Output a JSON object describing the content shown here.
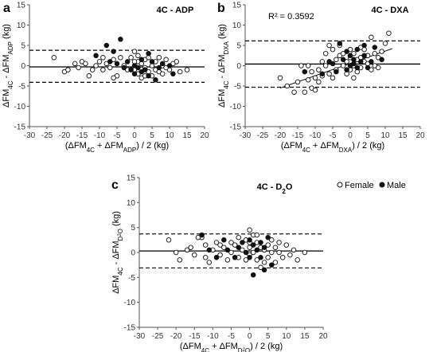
{
  "chart_data": [
    {
      "panel": "a",
      "type": "scatter",
      "title": "4C - ADP",
      "xlabel": "(ΔFM4C + ΔFMADP) / 2 (kg)",
      "ylabel": "ΔFM4C - ΔFMADP (kg)",
      "xlim": [
        -30,
        20
      ],
      "ylim": [
        -15,
        15
      ],
      "xticks": [
        "-30",
        "-25",
        "-20",
        "-15",
        "-10",
        "-5",
        "0",
        "5",
        "10",
        "15",
        "20"
      ],
      "yticks": [
        "-15",
        "-10",
        "-5",
        "0",
        "5",
        "10",
        "15"
      ],
      "mean": -0.3,
      "loa_upper": 3.8,
      "loa_lower": -4.1,
      "series": [
        {
          "sex": "female",
          "points": [
            [
              -23,
              2
            ],
            [
              -20,
              -1.5
            ],
            [
              -19,
              -1
            ],
            [
              -17,
              0.5
            ],
            [
              -16,
              -0.5
            ],
            [
              -15,
              1
            ],
            [
              -13,
              -2.5
            ],
            [
              -12,
              -1
            ],
            [
              -11,
              0
            ],
            [
              -10,
              1
            ],
            [
              -9,
              2
            ],
            [
              -9,
              -1
            ],
            [
              -8,
              0.5
            ],
            [
              -7,
              -0.5
            ],
            [
              -6,
              1.5
            ],
            [
              -5,
              -2.5
            ],
            [
              -4,
              2
            ],
            [
              -3,
              0
            ],
            [
              -2,
              -1
            ],
            [
              -1,
              2
            ],
            [
              0,
              3.5
            ],
            [
              0,
              -1
            ],
            [
              1,
              1
            ],
            [
              1,
              -2
            ],
            [
              2,
              0.5
            ],
            [
              2,
              -3
            ],
            [
              3,
              1.5
            ],
            [
              3,
              -0.5
            ],
            [
              4,
              2
            ],
            [
              4,
              -1.5
            ],
            [
              5,
              0
            ],
            [
              5,
              -2.5
            ],
            [
              6,
              1
            ],
            [
              6,
              -1
            ],
            [
              7,
              2
            ],
            [
              7,
              -1.5
            ],
            [
              8,
              0
            ],
            [
              8,
              -2
            ],
            [
              9,
              1.5
            ],
            [
              10,
              -1
            ],
            [
              11,
              0.5
            ],
            [
              12,
              1
            ],
            [
              13,
              -1.5
            ],
            [
              15,
              -1
            ],
            [
              -14,
              0.5
            ],
            [
              -6,
              -3
            ],
            [
              0,
              1
            ],
            [
              1,
              2.5
            ],
            [
              3,
              -2.5
            ],
            [
              9,
              -0.5
            ]
          ]
        },
        {
          "sex": "male",
          "points": [
            [
              -8,
              5
            ],
            [
              -4,
              6.5
            ],
            [
              -6,
              3.5
            ],
            [
              -11,
              2.5
            ],
            [
              -7,
              1
            ],
            [
              -3,
              -0.5
            ],
            [
              -1,
              -1
            ],
            [
              0,
              0
            ],
            [
              0,
              -2
            ],
            [
              1,
              -0.5
            ],
            [
              2,
              -1.5
            ],
            [
              2,
              1.5
            ],
            [
              3,
              -1
            ],
            [
              4,
              3
            ],
            [
              5,
              1
            ],
            [
              6,
              -3.5
            ],
            [
              7,
              -0.5
            ],
            [
              8,
              0.5
            ],
            [
              10,
              0
            ],
            [
              11,
              -2
            ],
            [
              -2,
              1
            ],
            [
              4,
              -2.5
            ],
            [
              -5,
              0.5
            ]
          ]
        }
      ]
    },
    {
      "panel": "b",
      "type": "scatter",
      "title": "4C - DXA",
      "annotation": "R² = 0.3592",
      "xlabel": "(ΔFM4C + ΔFMDXA) / 2 (kg)",
      "ylabel": "ΔFM4C - ΔFMDXA (kg)",
      "xlim": [
        -30,
        20
      ],
      "ylim": [
        -15,
        15
      ],
      "xticks": [
        "-30",
        "-25",
        "-20",
        "-15",
        "-10",
        "-5",
        "0",
        "5",
        "10",
        "15",
        "20"
      ],
      "yticks": [
        "-15",
        "-10",
        "-5",
        "0",
        "5",
        "10",
        "15"
      ],
      "mean": 0.4,
      "loa_upper": 6.1,
      "loa_lower": -5.3,
      "regression": [
        [
          -20,
          -5.5
        ],
        [
          12,
          4.2
        ]
      ],
      "series": [
        {
          "sex": "female",
          "points": [
            [
              -20,
              -3
            ],
            [
              -18,
              -5
            ],
            [
              -16,
              -6.5
            ],
            [
              -15,
              -4
            ],
            [
              -14,
              0
            ],
            [
              -13,
              -6.5
            ],
            [
              -12,
              -3.5
            ],
            [
              -11,
              -1.5
            ],
            [
              -11,
              -5.5
            ],
            [
              -10,
              -3
            ],
            [
              -10,
              -6
            ],
            [
              -9,
              -1
            ],
            [
              -9,
              -4
            ],
            [
              -8,
              1
            ],
            [
              -8,
              -2.5
            ],
            [
              -7,
              0
            ],
            [
              -7,
              3
            ],
            [
              -6,
              -2
            ],
            [
              -5,
              4
            ],
            [
              -5,
              -3
            ],
            [
              -4,
              1.5
            ],
            [
              -4,
              -1
            ],
            [
              -3,
              2.5
            ],
            [
              -3,
              5
            ],
            [
              -2,
              0
            ],
            [
              -2,
              3
            ],
            [
              -1,
              1
            ],
            [
              -1,
              -2
            ],
            [
              0,
              2
            ],
            [
              0,
              4
            ],
            [
              0,
              -1
            ],
            [
              1,
              0
            ],
            [
              1,
              3
            ],
            [
              2,
              -1.5
            ],
            [
              2,
              1.5
            ],
            [
              3,
              2
            ],
            [
              3,
              -0.5
            ],
            [
              4,
              4
            ],
            [
              4,
              1
            ],
            [
              5,
              0.5
            ],
            [
              5,
              2.5
            ],
            [
              6,
              7
            ],
            [
              6,
              -1
            ],
            [
              7,
              3
            ],
            [
              7,
              0
            ],
            [
              8,
              2
            ],
            [
              9,
              3.5
            ],
            [
              10,
              5.5
            ],
            [
              11,
              8
            ],
            [
              -12,
              0
            ],
            [
              -6,
              5
            ],
            [
              1,
              -3
            ],
            [
              3,
              4.5
            ],
            [
              8,
              -0.5
            ]
          ]
        },
        {
          "sex": "male",
          "points": [
            [
              -13,
              -1.5
            ],
            [
              -8,
              -2
            ],
            [
              -6,
              1
            ],
            [
              -5,
              0.5
            ],
            [
              -4,
              -1.5
            ],
            [
              -3,
              5.5
            ],
            [
              -2,
              1.5
            ],
            [
              -1,
              3.5
            ],
            [
              0,
              0
            ],
            [
              0,
              2.5
            ],
            [
              1,
              1.5
            ],
            [
              2,
              4
            ],
            [
              2,
              -0.5
            ],
            [
              3,
              1
            ],
            [
              4,
              5
            ],
            [
              4,
              2.5
            ],
            [
              5,
              -0.5
            ],
            [
              6,
              1
            ],
            [
              7,
              4.5
            ],
            [
              -1,
              -1
            ],
            [
              1,
              0.5
            ],
            [
              9,
              1.5
            ]
          ]
        }
      ]
    },
    {
      "panel": "c",
      "type": "scatter",
      "title": "4C - D2O",
      "xlabel": "(ΔFM4C + ΔFMD2O) / 2 (kg)",
      "ylabel": "ΔFM4C - ΔFMD2O (kg)",
      "xlim": [
        -30,
        20
      ],
      "ylim": [
        -15,
        15
      ],
      "xticks": [
        "-30",
        "-25",
        "-20",
        "-15",
        "-10",
        "-5",
        "0",
        "5",
        "10",
        "15",
        "20"
      ],
      "yticks": [
        "-15",
        "-10",
        "-5",
        "0",
        "5",
        "10",
        "15"
      ],
      "mean": 0.3,
      "loa_upper": 3.7,
      "loa_lower": -3.1,
      "series": [
        {
          "sex": "female",
          "points": [
            [
              -22,
              2.5
            ],
            [
              -20,
              0
            ],
            [
              -19,
              -1.5
            ],
            [
              -17,
              0.5
            ],
            [
              -16,
              1
            ],
            [
              -15,
              -0.5
            ],
            [
              -13,
              3
            ],
            [
              -12,
              1.5
            ],
            [
              -12,
              -1
            ],
            [
              -11,
              -2
            ],
            [
              -10,
              0.5
            ],
            [
              -9,
              2
            ],
            [
              -8,
              -0.5
            ],
            [
              -7,
              1
            ],
            [
              -6,
              -1.5
            ],
            [
              -5,
              2
            ],
            [
              -5,
              0
            ],
            [
              -4,
              1.5
            ],
            [
              -3,
              -1
            ],
            [
              -3,
              3
            ],
            [
              -2,
              0.5
            ],
            [
              -1,
              2.5
            ],
            [
              -1,
              -1.5
            ],
            [
              0,
              1
            ],
            [
              0,
              4.5
            ],
            [
              0,
              -0.5
            ],
            [
              1,
              3.5
            ],
            [
              1,
              0
            ],
            [
              2,
              -1.5
            ],
            [
              2,
              2
            ],
            [
              3,
              1
            ],
            [
              3,
              -3
            ],
            [
              4,
              0.5
            ],
            [
              4,
              -2
            ],
            [
              5,
              1.5
            ],
            [
              5,
              -1
            ],
            [
              6,
              2.5
            ],
            [
              6,
              0
            ],
            [
              7,
              -2
            ],
            [
              7,
              1
            ],
            [
              8,
              0
            ],
            [
              9,
              -1
            ],
            [
              10,
              1.5
            ],
            [
              11,
              -0.5
            ],
            [
              12,
              0.5
            ],
            [
              13,
              -1.5
            ],
            [
              15,
              0
            ],
            [
              -14,
              3
            ],
            [
              -8,
              1.5
            ],
            [
              0,
              2
            ],
            [
              2,
              3.5
            ],
            [
              8,
              2
            ]
          ]
        },
        {
          "sex": "male",
          "points": [
            [
              -13,
              3.5
            ],
            [
              -11,
              0.5
            ],
            [
              -9,
              -1
            ],
            [
              -7,
              2.5
            ],
            [
              -6,
              0.5
            ],
            [
              -4,
              -1
            ],
            [
              -2,
              2
            ],
            [
              -1,
              0
            ],
            [
              0,
              2.5
            ],
            [
              0,
              -1
            ],
            [
              1,
              1.5
            ],
            [
              1,
              -4.5
            ],
            [
              2,
              0.5
            ],
            [
              3,
              2
            ],
            [
              3,
              -1
            ],
            [
              4,
              1
            ],
            [
              5,
              3
            ],
            [
              6,
              -2.5
            ],
            [
              -3,
              1
            ],
            [
              4,
              -3.5
            ]
          ]
        }
      ]
    }
  ],
  "legend": {
    "female": "Female",
    "male": "Male"
  }
}
